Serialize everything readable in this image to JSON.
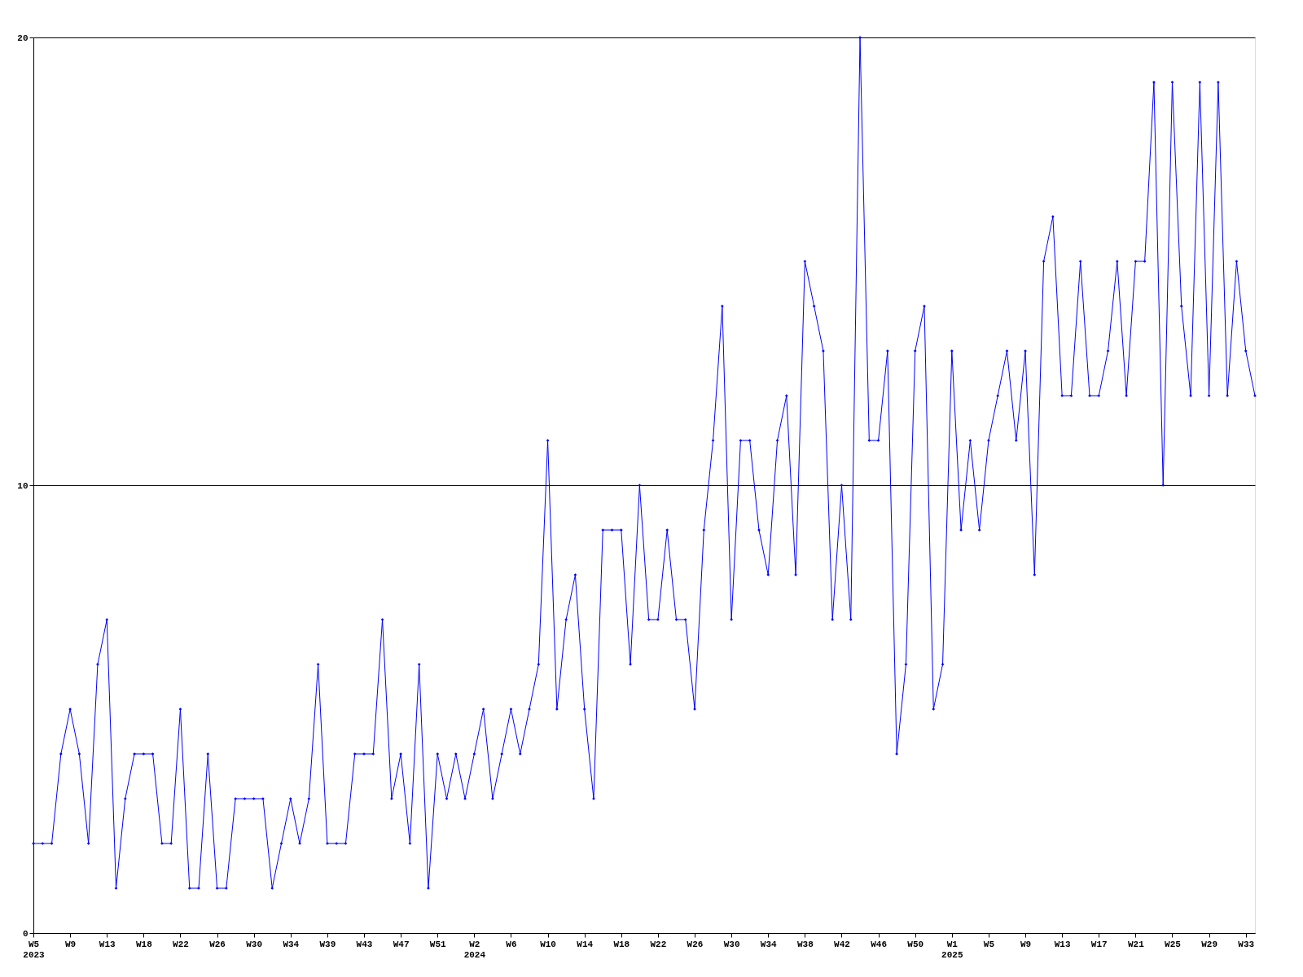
{
  "chart_data": {
    "type": "line",
    "categories": [
      "W5\n2023",
      null,
      null,
      null,
      "W9",
      null,
      null,
      null,
      "W13",
      null,
      null,
      null,
      "W18",
      null,
      null,
      null,
      "W22",
      null,
      null,
      null,
      "W26",
      null,
      null,
      null,
      "W30",
      null,
      null,
      null,
      "W34",
      null,
      null,
      null,
      "W39",
      null,
      null,
      null,
      "W43",
      null,
      null,
      null,
      "W47",
      null,
      null,
      null,
      "W51",
      null,
      null,
      null,
      "W2\n2024",
      null,
      null,
      null,
      "W6",
      null,
      null,
      null,
      "W10",
      null,
      null,
      null,
      "W14",
      null,
      null,
      null,
      "W18",
      null,
      null,
      null,
      "W22",
      null,
      null,
      null,
      "W26",
      null,
      null,
      null,
      "W30",
      null,
      null,
      null,
      "W34",
      null,
      null,
      null,
      "W38",
      null,
      null,
      null,
      "W42",
      null,
      null,
      null,
      "W46",
      null,
      null,
      null,
      "W50",
      null,
      null,
      null,
      "W1\n2025",
      null,
      null,
      null,
      "W5",
      null,
      null,
      null,
      "W9",
      null,
      null,
      null,
      "W13",
      null,
      null,
      null,
      "W17",
      null,
      null,
      null,
      "W21",
      null,
      null,
      null,
      "W25",
      null,
      null,
      null,
      "W29",
      null,
      null,
      null,
      "W33",
      null
    ],
    "series": [
      {
        "color": "#0000ff",
        "values": [
          2,
          2,
          2,
          4,
          5,
          4,
          2,
          6,
          7,
          1,
          3,
          4,
          4,
          4,
          2,
          2,
          5,
          1,
          1,
          4,
          1,
          1,
          3,
          3,
          3,
          3,
          1,
          2,
          3,
          2,
          3,
          6,
          2,
          2,
          2,
          4,
          4,
          4,
          7,
          3,
          4,
          2,
          6,
          1,
          4,
          3,
          4,
          3,
          4,
          5,
          3,
          4,
          5,
          4,
          5,
          6,
          11,
          5,
          7,
          8,
          5,
          3,
          9,
          9,
          9,
          6,
          10,
          7,
          7,
          9,
          7,
          7,
          5,
          9,
          11,
          14,
          7,
          11,
          11,
          9,
          8,
          11,
          12,
          8,
          15,
          14,
          13,
          7,
          10,
          7,
          20,
          11,
          11,
          13,
          4,
          6,
          13,
          14,
          5,
          6,
          13,
          9,
          11,
          9,
          11,
          12,
          13,
          11,
          13,
          8,
          15,
          16,
          12,
          12,
          15,
          12,
          12,
          13,
          15,
          12,
          15,
          15,
          19,
          10,
          19,
          14,
          12,
          19,
          12,
          19,
          12,
          15,
          13,
          12
        ]
      }
    ],
    "ylim": [
      0,
      20
    ],
    "yticks": [
      0,
      10,
      20
    ],
    "grid": "y",
    "marker": "diamond",
    "line_style": "solid"
  }
}
